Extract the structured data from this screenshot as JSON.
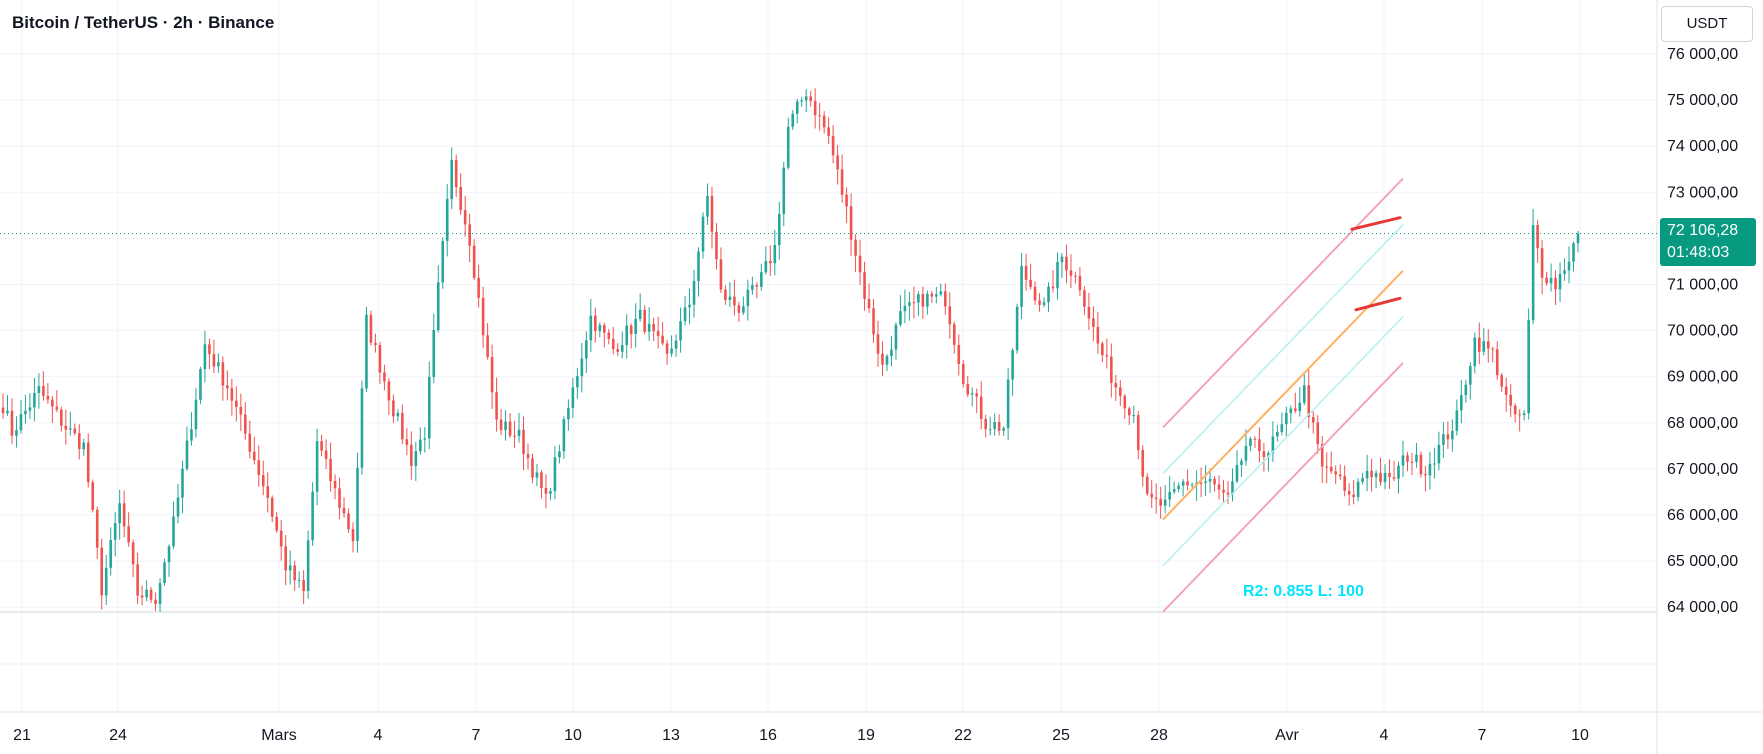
{
  "header": {
    "title": "Bitcoin / TetherUS · 2h · Binance",
    "currency_button": "USDT"
  },
  "last_price": {
    "price": "72 106,28",
    "value": 72106.28,
    "countdown": "01:48:03",
    "color": "#089981"
  },
  "regression_label": "R2: 0.855 L: 100",
  "colors": {
    "up": "#26a69a",
    "down": "#ef5350",
    "channel_outer": "#f4a3b8",
    "channel_inner": "#b2f0ef",
    "regression_line": "#ffb061",
    "flag_lines": "#e53935",
    "regression_label": "#00e5ff",
    "grid": "#f0f3fa",
    "axis_text": "#131722"
  },
  "chart_data": {
    "type": "candlestick",
    "symbol": "Bitcoin / TetherUS",
    "interval": "2h",
    "exchange": "Binance",
    "ylim": [
      63750,
      76200
    ],
    "y_ticks": [
      {
        "value": 76000,
        "label": "76 000,00"
      },
      {
        "value": 75000,
        "label": "75 000,00"
      },
      {
        "value": 74000,
        "label": "74 000,00"
      },
      {
        "value": 73000,
        "label": "73 000,00"
      },
      {
        "value": 71000,
        "label": "71 000,00"
      },
      {
        "value": 70000,
        "label": "70 000,00"
      },
      {
        "value": 69000,
        "label": "69 000,00"
      },
      {
        "value": 68000,
        "label": "68 000,00"
      },
      {
        "value": 67000,
        "label": "67 000,00"
      },
      {
        "value": 66000,
        "label": "66 000,00"
      },
      {
        "value": 65000,
        "label": "65 000,00"
      },
      {
        "value": 64000,
        "label": "64 000,00"
      }
    ],
    "x_ticks": [
      "21",
      "24",
      "Mars",
      "4",
      "7",
      "10",
      "13",
      "16",
      "19",
      "22",
      "25",
      "28",
      "Avr",
      "4",
      "7",
      "10"
    ],
    "price_path": [
      [
        0,
        68400
      ],
      [
        2,
        67800
      ],
      [
        8,
        68700
      ],
      [
        14,
        67900
      ],
      [
        18,
        67500
      ],
      [
        22,
        64400
      ],
      [
        26,
        66200
      ],
      [
        30,
        64300
      ],
      [
        34,
        64200
      ],
      [
        38,
        65800
      ],
      [
        45,
        69700
      ],
      [
        50,
        68800
      ],
      [
        55,
        67500
      ],
      [
        59,
        66400
      ],
      [
        63,
        64900
      ],
      [
        67,
        64300
      ],
      [
        70,
        67600
      ],
      [
        74,
        66500
      ],
      [
        78,
        65500
      ],
      [
        81,
        70200
      ],
      [
        87,
        68300
      ],
      [
        91,
        67200
      ],
      [
        94,
        67800
      ],
      [
        97,
        70900
      ],
      [
        100,
        73600
      ],
      [
        104,
        72000
      ],
      [
        110,
        68000
      ],
      [
        115,
        67700
      ],
      [
        121,
        66300
      ],
      [
        125,
        67900
      ],
      [
        131,
        70300
      ],
      [
        136,
        69600
      ],
      [
        142,
        70300
      ],
      [
        148,
        69400
      ],
      [
        153,
        70600
      ],
      [
        157,
        72900
      ],
      [
        160,
        70800
      ],
      [
        164,
        70500
      ],
      [
        168,
        70900
      ],
      [
        172,
        71800
      ],
      [
        175,
        74400
      ],
      [
        179,
        75200
      ],
      [
        184,
        74200
      ],
      [
        188,
        72600
      ],
      [
        192,
        70800
      ],
      [
        196,
        69200
      ],
      [
        200,
        70300
      ],
      [
        205,
        70700
      ],
      [
        210,
        70700
      ],
      [
        214,
        69000
      ],
      [
        219,
        68000
      ],
      [
        223,
        67900
      ],
      [
        227,
        71300
      ],
      [
        232,
        70500
      ],
      [
        236,
        71600
      ],
      [
        240,
        71000
      ],
      [
        244,
        69700
      ],
      [
        248,
        68800
      ],
      [
        252,
        68200
      ],
      [
        255,
        66300
      ],
      [
        259,
        66200
      ],
      [
        263,
        66700
      ],
      [
        269,
        66700
      ],
      [
        273,
        66300
      ],
      [
        277,
        67500
      ],
      [
        282,
        67400
      ],
      [
        287,
        68200
      ],
      [
        290,
        68700
      ],
      [
        294,
        67000
      ],
      [
        297,
        66900
      ],
      [
        300,
        66300
      ],
      [
        304,
        67000
      ],
      [
        309,
        66700
      ],
      [
        313,
        67300
      ],
      [
        317,
        67000
      ],
      [
        321,
        67600
      ],
      [
        324,
        68100
      ],
      [
        328,
        69800
      ],
      [
        332,
        69500
      ],
      [
        336,
        68200
      ],
      [
        339,
        68100
      ],
      [
        341,
        72200
      ],
      [
        343,
        71300
      ],
      [
        346,
        71000
      ],
      [
        349,
        71600
      ],
      [
        351,
        72100
      ]
    ],
    "regression_channel": {
      "center": [
        [
          1163,
          65900
        ],
        [
          1403,
          71300
        ]
      ],
      "upper_outer": [
        [
          1163,
          67900
        ],
        [
          1403,
          73300
        ]
      ],
      "lower_outer": [
        [
          1163,
          63900
        ],
        [
          1403,
          69300
        ]
      ],
      "upper_inner": [
        [
          1163,
          66900
        ],
        [
          1403,
          72300
        ]
      ],
      "lower_inner": [
        [
          1163,
          64900
        ],
        [
          1403,
          70300
        ]
      ]
    },
    "flag_lines": [
      [
        [
          1352,
          72200
        ],
        [
          1400,
          72450
        ]
      ],
      [
        [
          1356,
          70450
        ],
        [
          1400,
          70700
        ]
      ]
    ],
    "regression_stats": {
      "r2": 0.855,
      "length": 100
    }
  }
}
